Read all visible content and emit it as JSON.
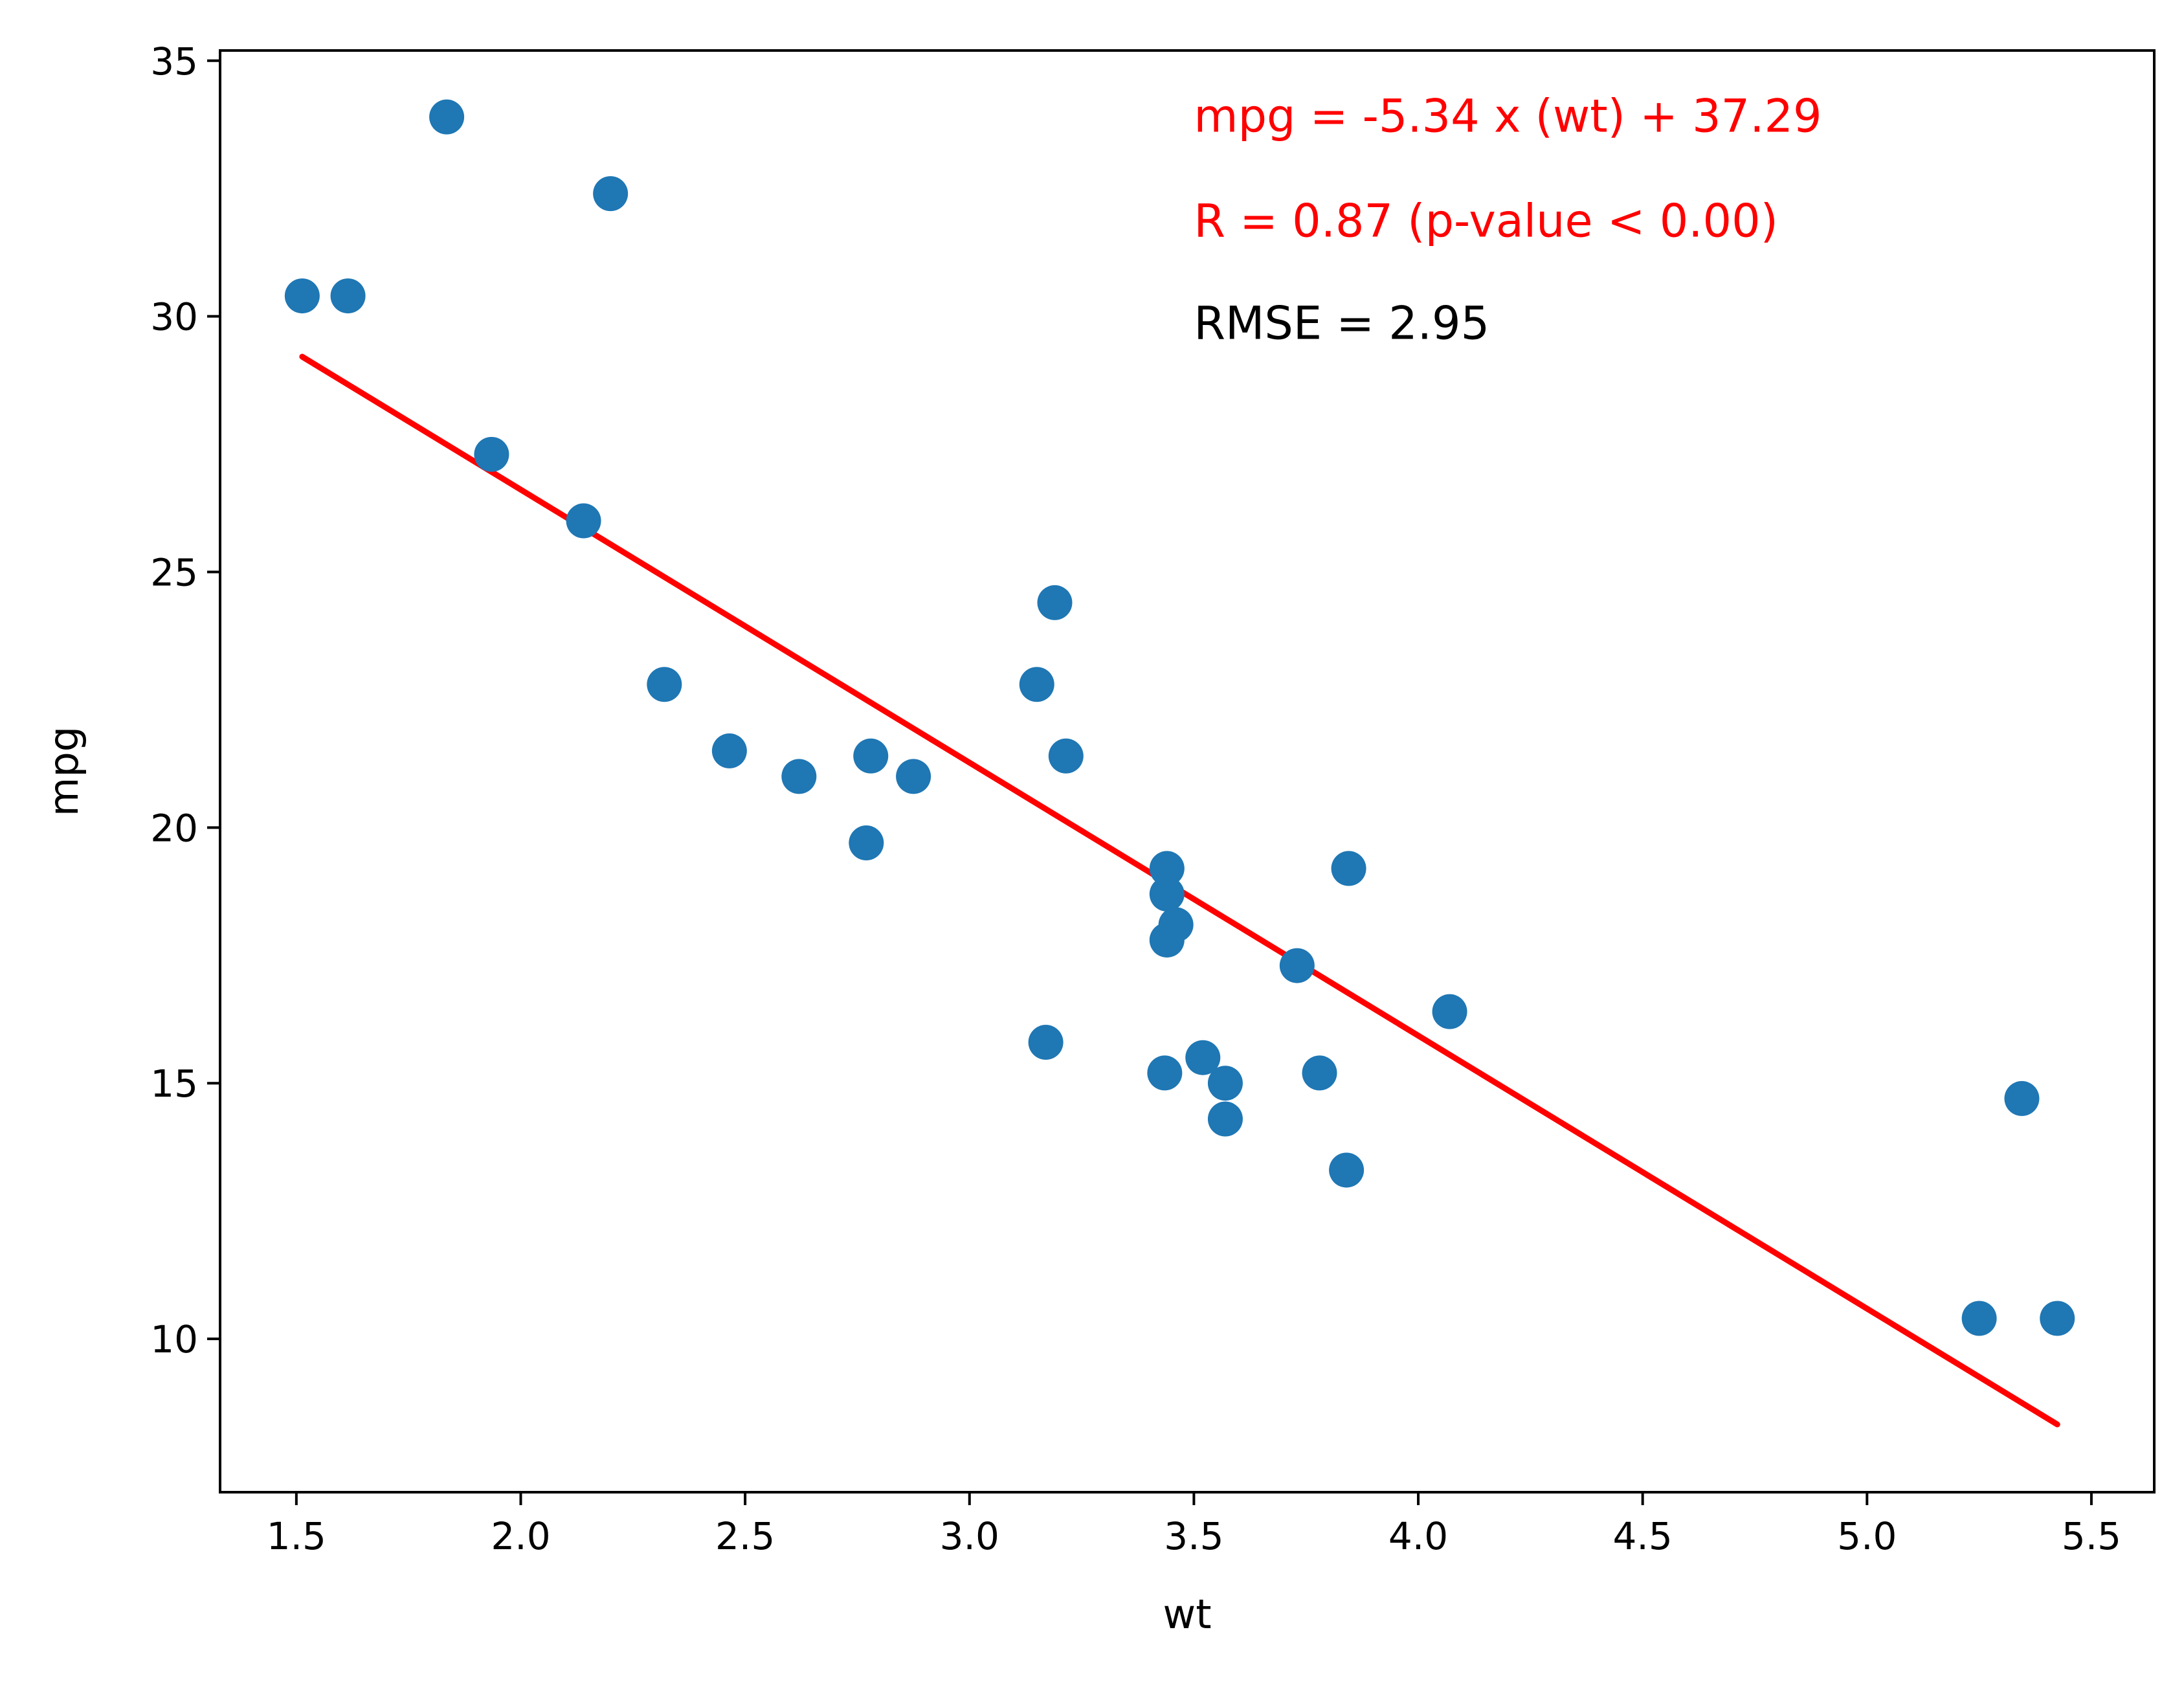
{
  "chart_data": {
    "type": "scatter",
    "xlabel": "wt",
    "ylabel": "mpg",
    "xlim": [
      1.33,
      5.64
    ],
    "ylim": [
      7.0,
      35.2
    ],
    "x_ticks": [
      1.5,
      2.0,
      2.5,
      3.0,
      3.5,
      4.0,
      4.5,
      5.0,
      5.5
    ],
    "x_tick_labels": [
      "1.5",
      "2.0",
      "2.5",
      "3.0",
      "3.5",
      "4.0",
      "4.5",
      "5.0",
      "5.5"
    ],
    "y_ticks": [
      10,
      15,
      20,
      25,
      30,
      35
    ],
    "y_tick_labels": [
      "10",
      "15",
      "20",
      "25",
      "30",
      "35"
    ],
    "grid": false,
    "points": [
      {
        "x": 1.513,
        "y": 30.4
      },
      {
        "x": 1.615,
        "y": 30.4
      },
      {
        "x": 1.835,
        "y": 33.9
      },
      {
        "x": 1.935,
        "y": 27.3
      },
      {
        "x": 2.14,
        "y": 26.0
      },
      {
        "x": 2.2,
        "y": 32.4
      },
      {
        "x": 2.32,
        "y": 22.8
      },
      {
        "x": 2.465,
        "y": 21.5
      },
      {
        "x": 2.62,
        "y": 21.0
      },
      {
        "x": 2.77,
        "y": 19.7
      },
      {
        "x": 2.78,
        "y": 21.4
      },
      {
        "x": 2.875,
        "y": 21.0
      },
      {
        "x": 3.15,
        "y": 22.8
      },
      {
        "x": 3.17,
        "y": 15.8
      },
      {
        "x": 3.19,
        "y": 24.4
      },
      {
        "x": 3.215,
        "y": 21.4
      },
      {
        "x": 3.435,
        "y": 15.2
      },
      {
        "x": 3.44,
        "y": 18.7
      },
      {
        "x": 3.44,
        "y": 17.8
      },
      {
        "x": 3.44,
        "y": 19.2
      },
      {
        "x": 3.46,
        "y": 18.1
      },
      {
        "x": 3.52,
        "y": 15.5
      },
      {
        "x": 3.57,
        "y": 14.3
      },
      {
        "x": 3.57,
        "y": 15.0
      },
      {
        "x": 3.73,
        "y": 17.3
      },
      {
        "x": 3.78,
        "y": 15.2
      },
      {
        "x": 3.84,
        "y": 13.3
      },
      {
        "x": 3.845,
        "y": 19.2
      },
      {
        "x": 4.07,
        "y": 16.4
      },
      {
        "x": 5.25,
        "y": 10.4
      },
      {
        "x": 5.345,
        "y": 14.7
      },
      {
        "x": 5.424,
        "y": 10.4
      }
    ],
    "point_color": "#1f77b4",
    "fit_line": {
      "slope": -5.34,
      "intercept": 37.29,
      "x_range": [
        1.513,
        5.424
      ],
      "color": "#ff0000"
    },
    "annotations": [
      {
        "name": "equation-annotation",
        "text": "mpg = -5.34 x (wt) + 37.29",
        "color": "#ff0000",
        "x": 3.5,
        "y": 33.85
      },
      {
        "name": "r-annotation",
        "text": "R = 0.87  (p-value < 0.00)",
        "color": "#ff0000",
        "x": 3.5,
        "y": 31.8
      },
      {
        "name": "rmse-annotation",
        "text": "RMSE = 2.95",
        "color": "#000000",
        "x": 3.5,
        "y": 29.8
      }
    ]
  }
}
